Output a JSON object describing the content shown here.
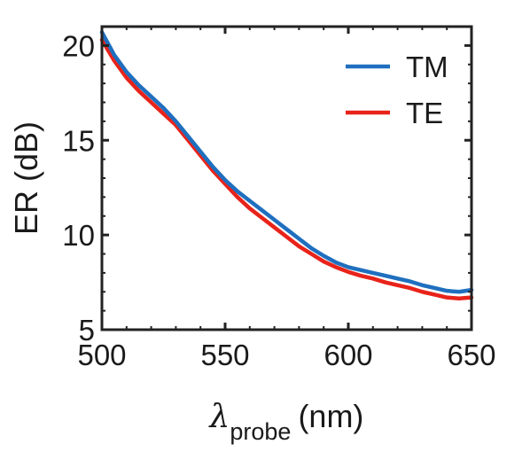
{
  "chart_data": {
    "type": "line",
    "title": "",
    "xlabel": {
      "main": "λ",
      "subscript": "probe",
      "unit": "(nm)"
    },
    "ylabel": "ER (dB)",
    "xlim": [
      500,
      650
    ],
    "ylim": [
      5,
      21
    ],
    "xticks": [
      500,
      550,
      600,
      650
    ],
    "yticks": [
      5,
      10,
      15,
      20
    ],
    "grid": false,
    "legend_position": "top-right",
    "series": [
      {
        "name": "TM",
        "color": "#1f6fbf",
        "x": [
          500,
          505,
          510,
          515,
          520,
          525,
          530,
          535,
          540,
          545,
          550,
          555,
          560,
          565,
          570,
          575,
          580,
          585,
          590,
          595,
          600,
          605,
          610,
          615,
          620,
          625,
          630,
          635,
          640,
          645,
          650
        ],
        "y": [
          20.7,
          19.5,
          18.6,
          17.9,
          17.3,
          16.7,
          16.0,
          15.2,
          14.4,
          13.6,
          12.9,
          12.3,
          11.8,
          11.3,
          10.8,
          10.3,
          9.8,
          9.3,
          8.9,
          8.55,
          8.3,
          8.15,
          8.0,
          7.85,
          7.7,
          7.55,
          7.35,
          7.2,
          7.05,
          7.0,
          7.1
        ]
      },
      {
        "name": "TE",
        "color": "#e8231a",
        "x": [
          500,
          505,
          510,
          515,
          520,
          525,
          530,
          535,
          540,
          545,
          550,
          555,
          560,
          565,
          570,
          575,
          580,
          585,
          590,
          595,
          600,
          605,
          610,
          615,
          620,
          625,
          630,
          635,
          640,
          645,
          650
        ],
        "y": [
          20.3,
          19.2,
          18.3,
          17.6,
          17.0,
          16.4,
          15.8,
          15.0,
          14.2,
          13.4,
          12.7,
          12.0,
          11.4,
          10.9,
          10.4,
          9.9,
          9.4,
          9.0,
          8.6,
          8.3,
          8.05,
          7.85,
          7.7,
          7.5,
          7.35,
          7.2,
          7.0,
          6.85,
          6.7,
          6.65,
          6.7
        ]
      }
    ]
  }
}
